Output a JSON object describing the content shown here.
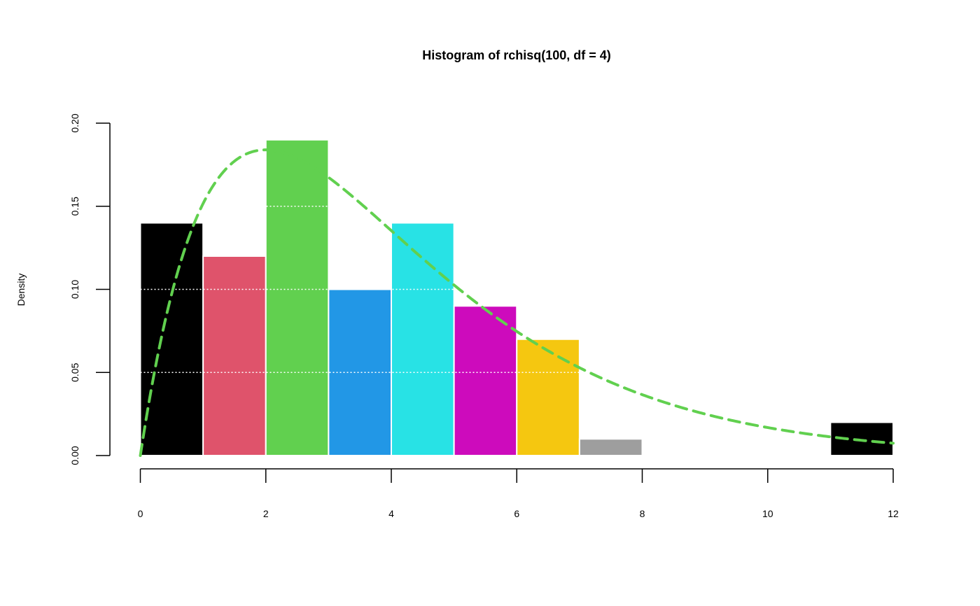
{
  "chart_data": {
    "type": "bar",
    "title": "Histogram of rchisq(100, df = 4)",
    "xlabel": "",
    "ylabel": "Density",
    "xlim": [
      0,
      12
    ],
    "ylim": [
      0,
      0.2
    ],
    "x_ticks": [
      0,
      2,
      4,
      6,
      8,
      10,
      12
    ],
    "y_ticks": [
      0,
      0.05,
      0.1,
      0.15,
      0.2
    ],
    "x_tick_labels": [
      "0",
      "2",
      "4",
      "6",
      "8",
      "10",
      "12"
    ],
    "y_tick_labels": [
      "0.00",
      "0.05",
      "0.10",
      "0.15",
      "0.20"
    ],
    "grid": "horizontal dotted white lines at 0.05, 0.10, 0.15",
    "bins": [
      {
        "start": 0,
        "end": 1,
        "density": 0.14,
        "color": "#000000"
      },
      {
        "start": 1,
        "end": 2,
        "density": 0.12,
        "color": "#DF536B"
      },
      {
        "start": 2,
        "end": 3,
        "density": 0.19,
        "color": "#61D04F"
      },
      {
        "start": 3,
        "end": 4,
        "density": 0.1,
        "color": "#2297E6"
      },
      {
        "start": 4,
        "end": 5,
        "density": 0.14,
        "color": "#28E2E5"
      },
      {
        "start": 5,
        "end": 6,
        "density": 0.09,
        "color": "#CD0BBC"
      },
      {
        "start": 6,
        "end": 7,
        "density": 0.07,
        "color": "#F5C710"
      },
      {
        "start": 7,
        "end": 8,
        "density": 0.01,
        "color": "#9E9E9E"
      },
      {
        "start": 8,
        "end": 9,
        "density": 0,
        "color": "#000000"
      },
      {
        "start": 9,
        "end": 10,
        "density": 0,
        "color": "#DF536B"
      },
      {
        "start": 10,
        "end": 11,
        "density": 0,
        "color": "#61D04F"
      },
      {
        "start": 11,
        "end": 12,
        "density": 0.02,
        "color": "#000000"
      }
    ],
    "curve": {
      "type": "chi-squared density",
      "df": 4,
      "color": "#61D04F",
      "style": "dashed"
    }
  }
}
